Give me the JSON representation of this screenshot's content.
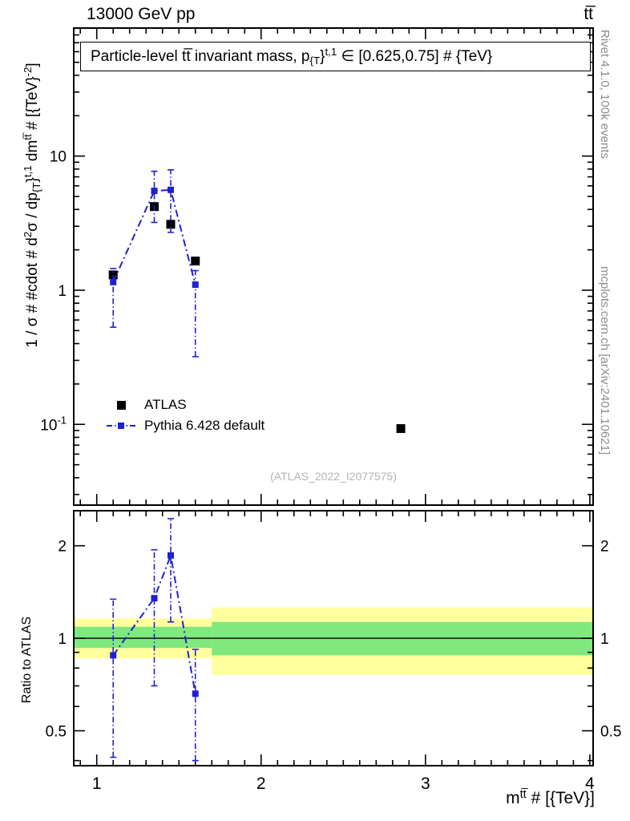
{
  "header": {
    "left": "13000 GeV pp",
    "right": "tt̅"
  },
  "plot_title_segments": [
    {
      "t": "Particle-level tt̅ invariant mass, p"
    },
    {
      "t": "{T",
      "s": "sub"
    },
    {
      "t": "}"
    },
    {
      "t": "t,1",
      "s": "sup"
    },
    {
      "t": " ∈ [0.625,0.75] # {TeV}"
    }
  ],
  "y_axis_label_segments": [
    {
      "t": "1 / σ # #cdot # d"
    },
    {
      "t": "2",
      "s": "sup"
    },
    {
      "t": "σ / dp"
    },
    {
      "t": "{T",
      "s": "sub"
    },
    {
      "t": "}"
    },
    {
      "t": "t,1",
      "s": "sup"
    },
    {
      "t": " dm"
    },
    {
      "t": "tt̅",
      "s": "sup"
    },
    {
      "t": " # [{TeV}"
    },
    {
      "t": "-2",
      "s": "sup"
    },
    {
      "t": "]"
    }
  ],
  "x_axis_label_segments": [
    {
      "t": "m"
    },
    {
      "t": "tt̅",
      "s": "sup"
    },
    {
      "t": " # [{TeV}]"
    }
  ],
  "ratio_y_label": "Ratio to ATLAS",
  "legend": [
    {
      "label": "ATLAS",
      "type": "data"
    },
    {
      "label": "Pythia 6.428 default",
      "type": "mc"
    }
  ],
  "watermark": "(ATLAS_2022_I2077575)",
  "credits": {
    "top": "Rivet 4.1.0,  100k events",
    "bottom": "mcplots.cern.ch [arXiv:2401.10621]"
  },
  "colors": {
    "mc": "#2020d0",
    "data": "#000000",
    "band_yellow": "#ffff9e",
    "band_green": "#7fe87f",
    "credits": "#8c8c8c",
    "watermark": "#b4b4b4"
  },
  "chart_data": {
    "type": "line",
    "title": "Particle-level tt invariant mass, p_{T}^{t,1} in [0.625,0.75] {TeV}",
    "x": {
      "min": 0.86,
      "max": 4.02,
      "major_ticks": [
        1,
        2,
        3,
        4
      ],
      "minor_step": 0.1,
      "label": "m^{tt} # [{TeV}]"
    },
    "main": {
      "scale": "log",
      "min": 0.025,
      "max": 90,
      "ylabel": "1 / sigma d2sigma / dp_T^{t,1} dm^{tt} [TeV^-2]",
      "tick_labels": [
        {
          "value": 10,
          "text": "10"
        },
        {
          "value": 1,
          "text": "1"
        },
        {
          "value": 0.1,
          "text": "10",
          "exp": "-1"
        }
      ],
      "series": [
        {
          "name": "ATLAS",
          "marker": "filled-square",
          "color": "#000000",
          "points": [
            [
              1.1,
              1.3
            ],
            [
              1.35,
              4.2
            ],
            [
              1.45,
              3.1
            ],
            [
              1.6,
              1.65
            ],
            [
              2.85,
              0.093
            ]
          ]
        },
        {
          "name": "Pythia 6.428 default",
          "marker": "filled-square",
          "color": "#2020d0",
          "line": "dash-dot",
          "points": [
            [
              1.1,
              1.15
            ],
            [
              1.35,
              5.5
            ],
            [
              1.45,
              5.6
            ],
            [
              1.6,
              1.1
            ]
          ],
          "errors": [
            [
              0.53,
              1.45
            ],
            [
              3.2,
              7.7
            ],
            [
              2.7,
              7.9
            ],
            [
              0.32,
              1.4
            ]
          ]
        }
      ]
    },
    "ratio": {
      "scale": "log",
      "min": 0.385,
      "max": 2.6,
      "ylabel": "Ratio to ATLAS",
      "reference_line": 1,
      "tick_labels": [
        {
          "value": 2,
          "text": "2"
        },
        {
          "value": 1,
          "text": "1"
        },
        {
          "value": 0.5,
          "text": "0.5"
        }
      ],
      "bands": [
        {
          "x1": 0.86,
          "x2": 1.7,
          "yellow": [
            0.86,
            1.16
          ],
          "green": [
            0.93,
            1.09
          ]
        },
        {
          "x1": 1.7,
          "x2": 4.02,
          "yellow": [
            0.76,
            1.26
          ],
          "green": [
            0.88,
            1.13
          ]
        }
      ],
      "series": [
        {
          "name": "Pythia 6.428 default",
          "color": "#2020d0",
          "line": "dash-dot",
          "points": [
            [
              1.1,
              0.88
            ],
            [
              1.35,
              1.35
            ],
            [
              1.45,
              1.86
            ],
            [
              1.6,
              0.66
            ]
          ],
          "errors": [
            [
              0.41,
              1.34
            ],
            [
              0.7,
              1.94
            ],
            [
              1.13,
              2.45
            ],
            [
              0.4,
              0.92
            ]
          ]
        }
      ]
    }
  }
}
